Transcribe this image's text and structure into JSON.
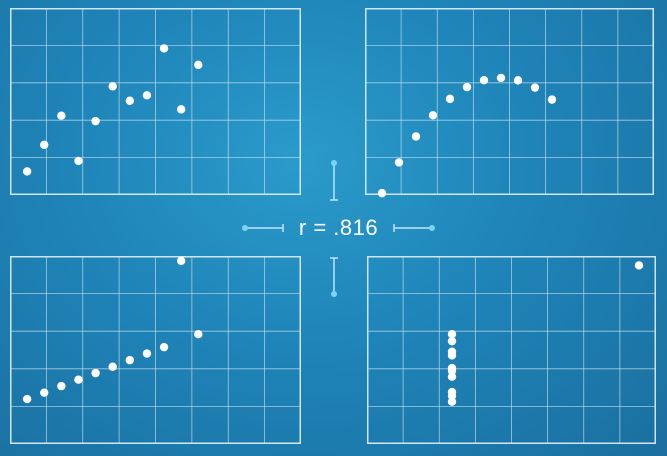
{
  "correlation_label": "r = .816",
  "colors": {
    "grid": "#cfe6f3",
    "point": "#ffffff",
    "accent": "#7fd3f2"
  },
  "chart_data": [
    {
      "type": "scatter",
      "xlim": [
        3,
        20
      ],
      "ylim": [
        3,
        13
      ],
      "grid": true,
      "x": [
        4,
        5,
        6,
        7,
        8,
        9,
        10,
        11,
        12,
        13,
        14
      ],
      "y": [
        4.26,
        5.68,
        7.24,
        4.82,
        6.95,
        8.81,
        8.04,
        8.33,
        10.84,
        7.58,
        9.96
      ]
    },
    {
      "type": "scatter",
      "xlim": [
        3,
        20
      ],
      "ylim": [
        3,
        13
      ],
      "grid": true,
      "x": [
        4,
        5,
        6,
        7,
        8,
        9,
        10,
        11,
        12,
        13,
        14
      ],
      "y": [
        3.1,
        4.74,
        6.13,
        7.26,
        8.14,
        8.77,
        9.14,
        9.26,
        9.13,
        8.74,
        8.1
      ]
    },
    {
      "type": "scatter",
      "xlim": [
        3,
        20
      ],
      "ylim": [
        3,
        13
      ],
      "grid": true,
      "x": [
        4,
        5,
        6,
        7,
        8,
        9,
        10,
        11,
        12,
        13,
        14
      ],
      "y": [
        5.39,
        5.73,
        6.08,
        6.42,
        6.77,
        7.11,
        7.46,
        7.81,
        8.15,
        12.74,
        8.84
      ]
    },
    {
      "type": "scatter",
      "xlim": [
        3,
        20
      ],
      "ylim": [
        3,
        13
      ],
      "grid": true,
      "x": [
        8,
        8,
        8,
        8,
        8,
        8,
        8,
        8,
        8,
        8,
        19
      ],
      "y": [
        5.25,
        5.56,
        5.76,
        6.58,
        6.89,
        7.04,
        7.71,
        7.91,
        8.47,
        8.84,
        12.5
      ]
    }
  ]
}
